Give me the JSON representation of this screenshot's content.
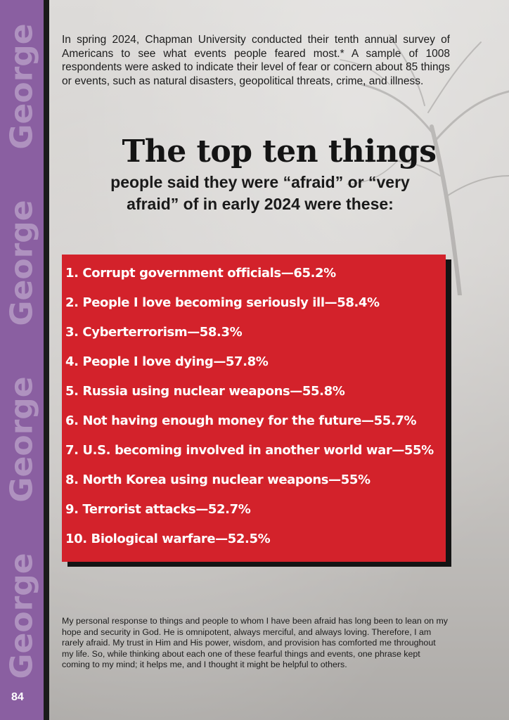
{
  "sidebar": {
    "repeated_word": "George",
    "page_number": "84"
  },
  "intro": {
    "text": "In spring 2024, Chapman University conducted their tenth annual survey of Americans to see what events people feared most.* A sample of 1008 respondents were asked to indicate their level of fear or concern about 85 things or events, such as natural disasters, geopolitical threats, crime, and illness."
  },
  "headline": {
    "title": "The top ten things",
    "subtitle_line1": "people said they were “afraid” or “very",
    "subtitle_line2": "afraid” of in early 2024 were these:"
  },
  "fears": {
    "items": [
      "1. Corrupt government officials—65.2%",
      "2. People I love becoming seriously ill—58.4%",
      "3. Cyberterrorism—58.3%",
      "4. People I love dying—57.8%",
      "5. Russia using nuclear weapons—55.8%",
      "6. Not having enough money for the future—55.7%",
      "7. U.S. becoming involved in another world war—55%",
      "8. North Korea using nuclear weapons—55%",
      "9. Terrorist attacks—52.7%",
      "10. Biological warfare—52.5%"
    ]
  },
  "closing": {
    "text": "My personal response to things and people to whom I have been afraid has long been to lean on my hope and security in God. He is omnipotent, always merciful, and always loving. Therefore, I am rarely afraid. My trust in Him and His power, wisdom, and provision has comforted me throughout my life. So, while thinking about each one of these fearful things and events, one phrase kept coming to my mind; it helps me, and I thought it might be helpful to others."
  },
  "colors": {
    "sidebar": "#8a5fa1",
    "list_box": "#d3222b",
    "shadow": "#141414"
  }
}
